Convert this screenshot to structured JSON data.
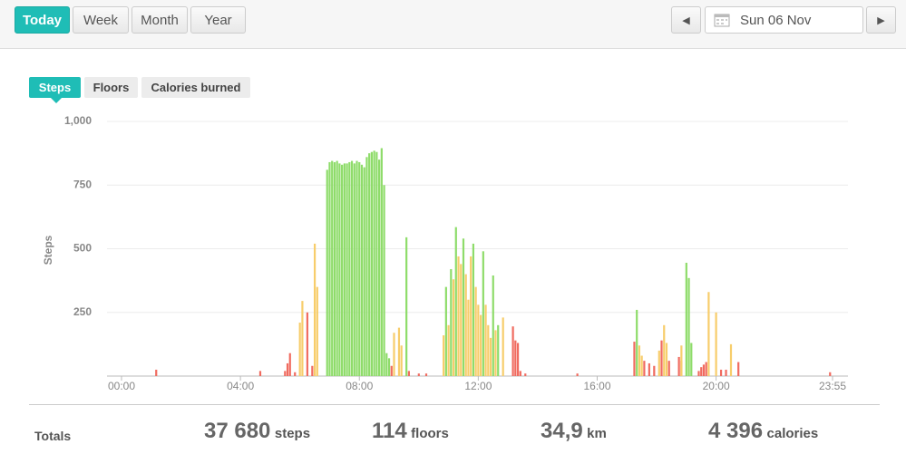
{
  "toolbar": {
    "periods": [
      "Today",
      "Week",
      "Month",
      "Year"
    ],
    "date": "Sun 06 Nov"
  },
  "metric_tabs": [
    "Steps",
    "Floors",
    "Calories burned"
  ],
  "chart_data": {
    "type": "bar",
    "y_label": "Steps",
    "xlim": [
      0,
      1435
    ],
    "xticks": [
      {
        "value": 0,
        "label": "00:00"
      },
      {
        "value": 240,
        "label": "04:00"
      },
      {
        "value": 480,
        "label": "08:00"
      },
      {
        "value": 720,
        "label": "12:00"
      },
      {
        "value": 960,
        "label": "16:00"
      },
      {
        "value": 1200,
        "label": "20:00"
      },
      {
        "value": 1435,
        "label": "23:55"
      }
    ],
    "ylim": [
      0,
      1000
    ],
    "yticks": [
      250,
      500,
      750,
      {
        "value": 1000,
        "label": "1,000"
      }
    ],
    "grid": true,
    "series": [
      {
        "color": "#f06b5f",
        "x": [
          70,
          280,
          330,
          335,
          340,
          350,
          375,
          385,
          545,
          580,
          600,
          615,
          790,
          795,
          800,
          805,
          815,
          920,
          1035,
          1055,
          1065,
          1075,
          1090,
          1105,
          1125,
          1130,
          1165,
          1170,
          1175,
          1180,
          1210,
          1220,
          1245,
          1430
        ],
        "values": [
          25,
          20,
          20,
          50,
          90,
          15,
          250,
          40,
          40,
          20,
          10,
          10,
          195,
          140,
          130,
          20,
          10,
          10,
          135,
          60,
          50,
          40,
          140,
          60,
          75,
          60,
          20,
          35,
          45,
          55,
          25,
          25,
          55,
          15
        ]
      },
      {
        "color": "#f7cd6b",
        "x": [
          360,
          365,
          390,
          395,
          550,
          560,
          565,
          650,
          660,
          670,
          680,
          685,
          695,
          700,
          705,
          715,
          720,
          725,
          735,
          740,
          745,
          755,
          770,
          1045,
          1050,
          1085,
          1095,
          1100,
          1130,
          1185,
          1200,
          1230
        ],
        "values": [
          210,
          295,
          520,
          350,
          170,
          190,
          120,
          160,
          200,
          380,
          470,
          440,
          400,
          300,
          470,
          350,
          280,
          240,
          280,
          200,
          150,
          180,
          230,
          120,
          80,
          100,
          200,
          130,
          120,
          330,
          250,
          125
        ]
      },
      {
        "color": "#8edc6a",
        "x": [
          415,
          420,
          425,
          430,
          435,
          440,
          445,
          450,
          455,
          460,
          465,
          470,
          475,
          480,
          485,
          490,
          495,
          500,
          505,
          510,
          515,
          520,
          525,
          530,
          535,
          540,
          575,
          655,
          665,
          675,
          690,
          710,
          730,
          750,
          760,
          1040,
          1140,
          1145,
          1150
        ],
        "values": [
          810,
          840,
          845,
          840,
          845,
          835,
          830,
          835,
          835,
          840,
          845,
          835,
          845,
          840,
          830,
          820,
          860,
          875,
          880,
          885,
          880,
          850,
          895,
          750,
          90,
          70,
          545,
          350,
          420,
          585,
          540,
          520,
          490,
          395,
          200,
          260,
          445,
          385,
          130
        ]
      }
    ]
  },
  "totals": {
    "label": "Totals",
    "items": [
      {
        "value": "37 680",
        "unit": "steps"
      },
      {
        "value": "114",
        "unit": "floors"
      },
      {
        "value": "34,9",
        "unit": "km"
      },
      {
        "value": "4 396",
        "unit": "calories"
      }
    ]
  }
}
